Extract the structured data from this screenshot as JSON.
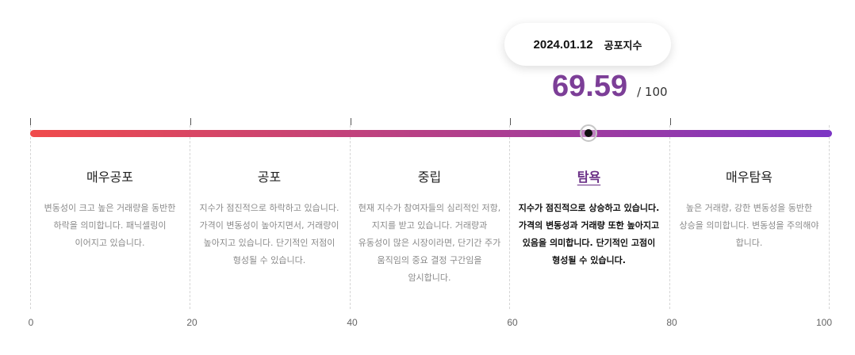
{
  "tooltip": {
    "date": "2024.01.12",
    "label": "공포지수"
  },
  "score": {
    "value": "69.59",
    "max_label": "/ 100",
    "numeric": 69.59
  },
  "scale": {
    "min": 0,
    "max": 100,
    "gradient_start": "#f04b4b",
    "gradient_end": "#7b35c4",
    "ticks": [
      "0",
      "20",
      "40",
      "60",
      "80",
      "100"
    ]
  },
  "zones": [
    {
      "title": "매우공포",
      "desc": "변동성이 크고 높은 거래량을 동반한 하락을 의미합니다. 패닉셀링이 이어지고 있습니다.",
      "active": false
    },
    {
      "title": "공포",
      "desc": "지수가 점진적으로 하락하고 있습니다. 가격이 변동성이 높아지면서, 거래량이 높아지고 있습니다. 단기적인 저점이 형성될 수 있습니다.",
      "active": false
    },
    {
      "title": "중립",
      "desc": "현재 지수가 참여자들의 심리적인 저항, 지지를 받고 있습니다. 거래량과 유동성이 많은 시장이라면, 단기간 주가 움직임의 중요 결정 구간임을 암시합니다.",
      "active": false
    },
    {
      "title": "탐욕",
      "desc": "지수가 점진적으로 상승하고 있습니다. 가격의 변동성과 거래량 또한 높아지고 있음을 의미합니다. 단기적인 고점이 형성될 수 있습니다.",
      "active": true
    },
    {
      "title": "매우탐욕",
      "desc": "높은 거래량, 강한 변동성을 동반한 상승을 의미합니다. 변동성을 주의해야 합니다.",
      "active": false
    }
  ],
  "colors": {
    "accent": "#7c3e97",
    "active_title": "#6a2f86"
  }
}
